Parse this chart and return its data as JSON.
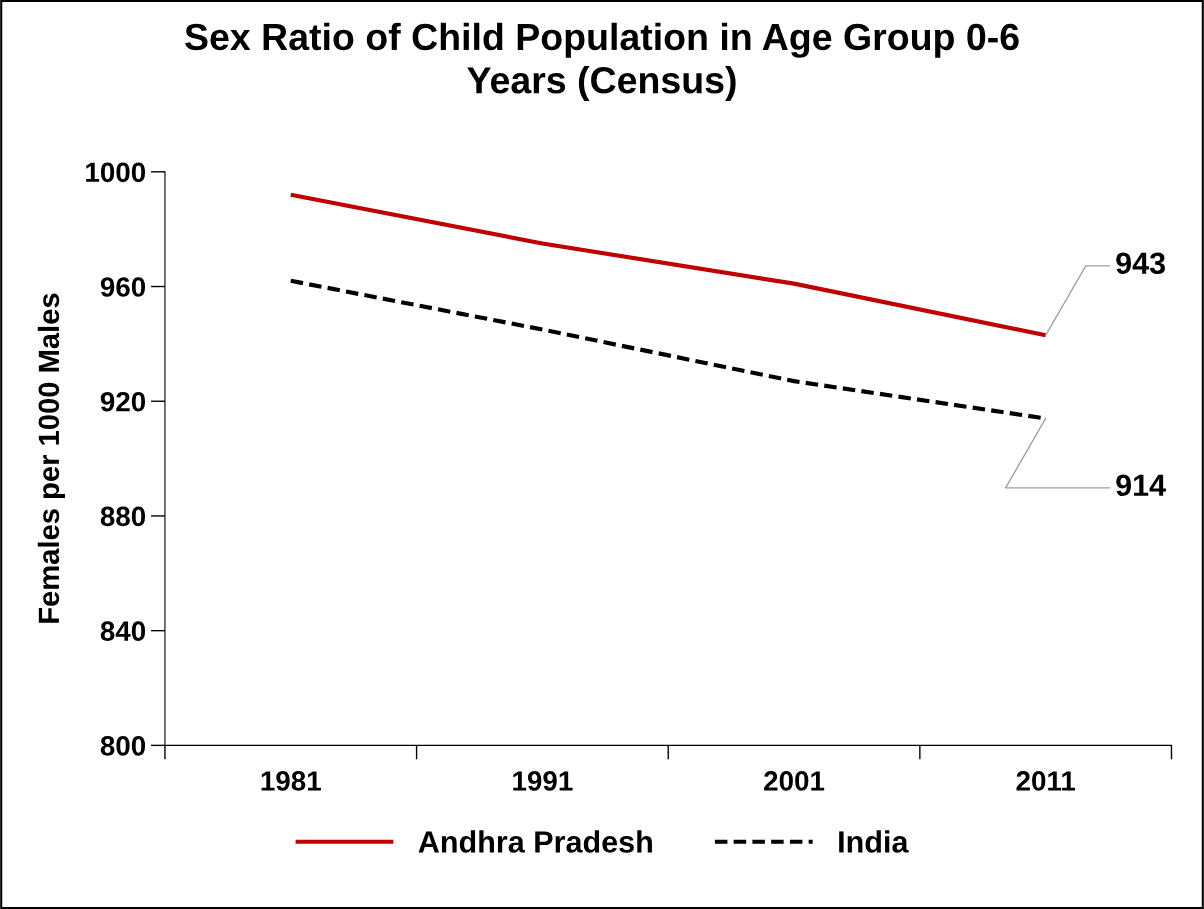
{
  "chart_data": {
    "type": "line",
    "title": "Sex Ratio of Child Population in Age Group 0-6\nYears (Census)",
    "ylabel": "Females per 1000 Males",
    "categories": [
      "1981",
      "1991",
      "2001",
      "2011"
    ],
    "series": [
      {
        "name": "Andhra Pradesh",
        "color": "#c00000",
        "values": [
          992,
          975,
          961,
          943
        ],
        "line_style": "solid",
        "value_labels": [
          null,
          null,
          null,
          "943"
        ]
      },
      {
        "name": "India",
        "color": "#000000",
        "values": [
          962,
          945,
          927,
          914
        ],
        "line_style": "dashed",
        "value_labels": [
          null,
          null,
          null,
          "914"
        ]
      }
    ],
    "ylim": [
      800,
      1000
    ],
    "yticks": [
      800,
      840,
      880,
      920,
      960,
      1000
    ],
    "grid": false,
    "legend": "bottom",
    "marker": "none"
  }
}
